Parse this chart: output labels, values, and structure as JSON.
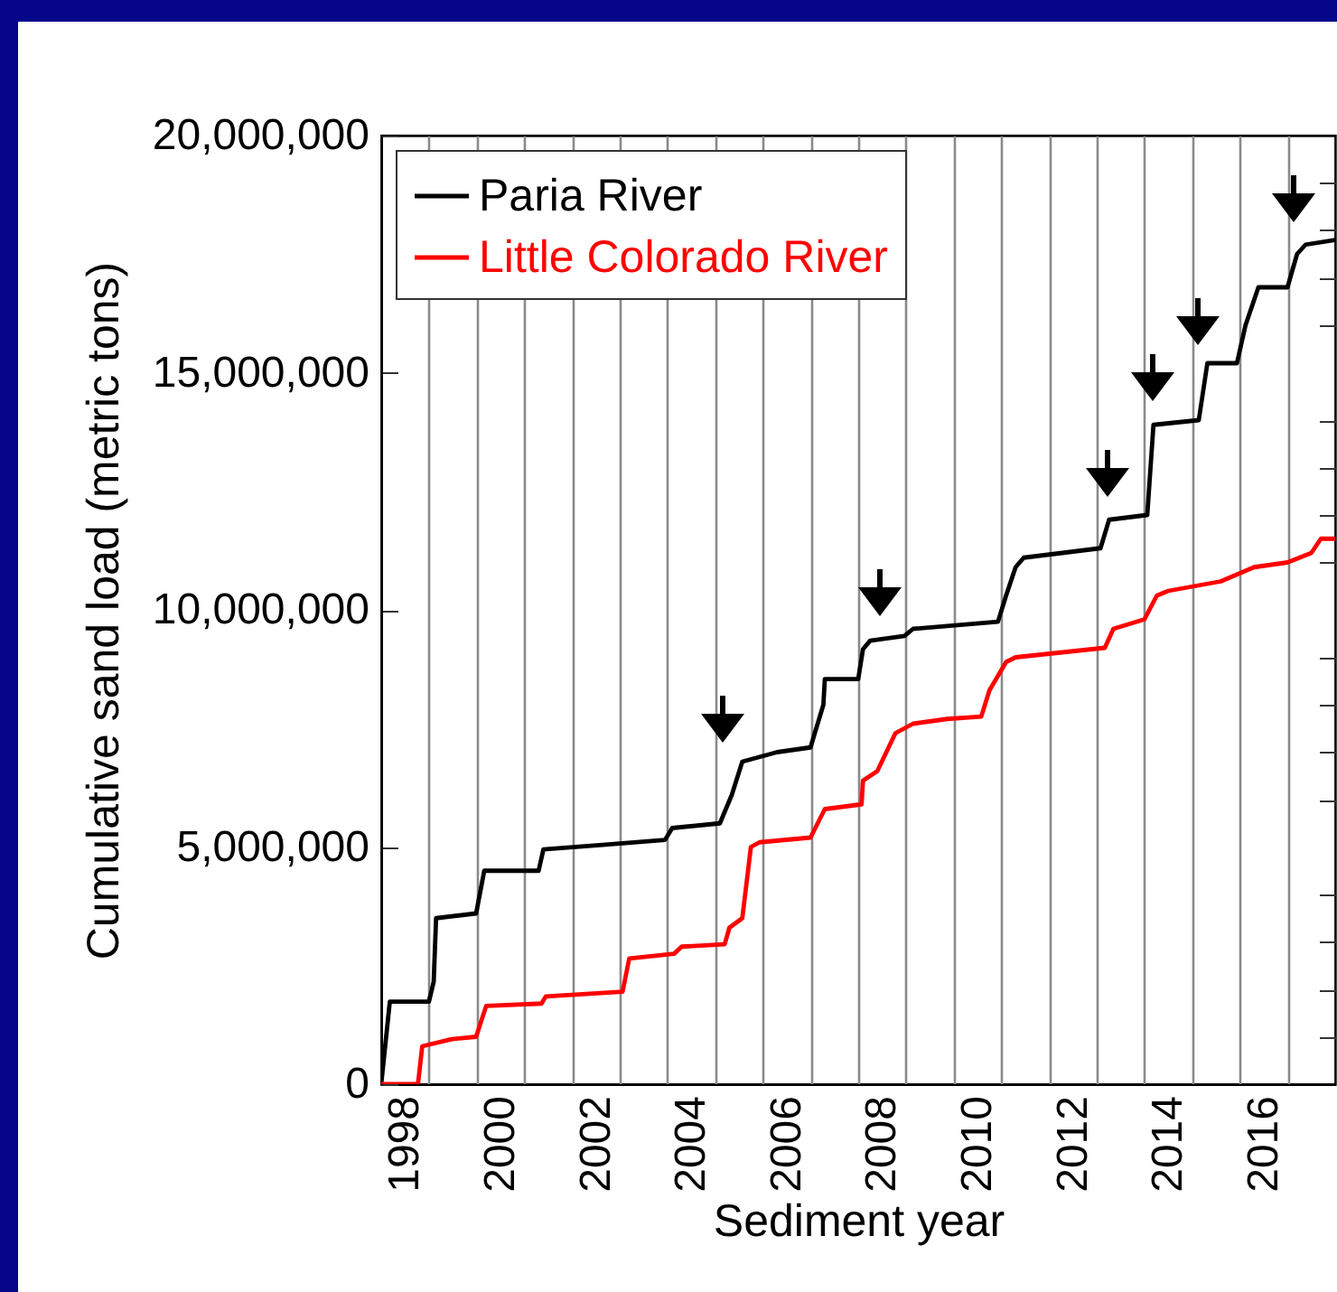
{
  "chart_data": {
    "type": "line",
    "xlabel": "Sediment year",
    "ylabel": "Cumulative sand load (metric tons)",
    "xlim": [
      1998,
      2018
    ],
    "xticks": [
      {
        "value": 1998.5,
        "label": "1998"
      },
      {
        "value": 1999,
        "label": null
      },
      {
        "value": 2000,
        "label": null
      },
      {
        "value": 2000.5,
        "label": "2000"
      },
      {
        "value": 2001,
        "label": null
      },
      {
        "value": 2002,
        "label": null
      },
      {
        "value": 2002.5,
        "label": "2002"
      },
      {
        "value": 2003,
        "label": null
      },
      {
        "value": 2004,
        "label": null
      },
      {
        "value": 2004.5,
        "label": "2004"
      },
      {
        "value": 2005,
        "label": null
      },
      {
        "value": 2006,
        "label": null
      },
      {
        "value": 2006.5,
        "label": "2006"
      },
      {
        "value": 2007,
        "label": null
      },
      {
        "value": 2008,
        "label": null
      },
      {
        "value": 2008.5,
        "label": "2008"
      },
      {
        "value": 2009,
        "label": null
      },
      {
        "value": 2010,
        "label": null
      },
      {
        "value": 2010.5,
        "label": "2010"
      },
      {
        "value": 2011,
        "label": null
      },
      {
        "value": 2012,
        "label": null
      },
      {
        "value": 2012.5,
        "label": "2012"
      },
      {
        "value": 2013,
        "label": null
      },
      {
        "value": 2014,
        "label": null
      },
      {
        "value": 2014.5,
        "label": "2014"
      },
      {
        "value": 2015,
        "label": null
      },
      {
        "value": 2016,
        "label": null
      },
      {
        "value": 2016.5,
        "label": "2016"
      },
      {
        "value": 2017,
        "label": null
      }
    ],
    "ylim": [
      0,
      20000000
    ],
    "yticks": [
      0,
      {
        "value": 1000000,
        "label": null
      },
      {
        "value": 2000000,
        "label": null
      },
      {
        "value": 3000000,
        "label": null
      },
      {
        "value": 4000000,
        "label": null
      },
      {
        "value": 5000000,
        "label": "5,000,000"
      },
      {
        "value": 6000000,
        "label": null
      },
      {
        "value": 7000000,
        "label": null
      },
      {
        "value": 8000000,
        "label": null
      },
      {
        "value": 9000000,
        "label": null
      },
      {
        "value": 10000000,
        "label": "10,000,000"
      },
      {
        "value": 11000000,
        "label": null
      },
      {
        "value": 12000000,
        "label": null
      },
      {
        "value": 13000000,
        "label": null
      },
      {
        "value": 14000000,
        "label": null
      },
      {
        "value": 15000000,
        "label": "15,000,000"
      },
      {
        "value": 16000000,
        "label": null
      },
      {
        "value": 17000000,
        "label": null
      },
      {
        "value": 18000000,
        "label": null
      },
      {
        "value": 19000000,
        "label": null
      },
      {
        "value": 20000000,
        "label": "20,000,000"
      }
    ],
    "grid": "x",
    "legend": "top left",
    "line_style": "solid",
    "marker": "none",
    "series": [
      {
        "name": "Paria River",
        "color": "#000000",
        "x": [
          1998.0,
          1998.18,
          1999.0,
          1999.1,
          1999.15,
          1999.99,
          2000.16,
          2001.3,
          2001.4,
          2002.7,
          2003.95,
          2004.1,
          2005.1,
          2005.35,
          2005.57,
          2006.3,
          2007.0,
          2007.27,
          2007.3,
          2008.0,
          2008.1,
          2008.25,
          2008.97,
          2009.15,
          2010.93,
          2011.1,
          2011.3,
          2011.47,
          2013.08,
          2013.26,
          2014.06,
          2014.19,
          2015.14,
          2015.32,
          2015.94,
          2016.12,
          2016.39,
          2017.0,
          2017.2,
          2017.38,
          2018.0
        ],
        "values": [
          0,
          1740000,
          1740000,
          2160000,
          3500000,
          3600000,
          4500000,
          4500000,
          4950000,
          5050000,
          5150000,
          5400000,
          5500000,
          6100000,
          6800000,
          7000000,
          7100000,
          8000000,
          8540000,
          8540000,
          9170000,
          9350000,
          9450000,
          9600000,
          9750000,
          10300000,
          10900000,
          11100000,
          11300000,
          11900000,
          12000000,
          13900000,
          14000000,
          15200000,
          15200000,
          16000000,
          16800000,
          16800000,
          17500000,
          17700000,
          17800000
        ]
      },
      {
        "name": "Little Colorado River",
        "color": "#ff0000",
        "x": [
          1998.0,
          1998.77,
          1998.86,
          1999.48,
          1999.99,
          2000.2,
          2001.36,
          2001.45,
          2003.06,
          2003.2,
          2004.14,
          2004.3,
          2005.2,
          2005.3,
          2005.57,
          2005.75,
          2005.93,
          2007.0,
          2007.3,
          2008.07,
          2008.1,
          2008.4,
          2008.78,
          2009.15,
          2009.86,
          2010.58,
          2010.75,
          2011.1,
          2011.3,
          2013.17,
          2013.35,
          2014.0,
          2014.26,
          2014.5,
          2015.6,
          2016.3,
          2017.0,
          2017.5,
          2017.7,
          2018.0
        ],
        "values": [
          0,
          0,
          800000,
          950000,
          1000000,
          1650000,
          1700000,
          1850000,
          1950000,
          2650000,
          2750000,
          2900000,
          2950000,
          3300000,
          3500000,
          5000000,
          5100000,
          5200000,
          5800000,
          5900000,
          6400000,
          6600000,
          7400000,
          7600000,
          7700000,
          7750000,
          8300000,
          8900000,
          9000000,
          9200000,
          9600000,
          9800000,
          10300000,
          10400000,
          10600000,
          10900000,
          11000000,
          11200000,
          11500000,
          11500000
        ]
      }
    ]
  }
}
